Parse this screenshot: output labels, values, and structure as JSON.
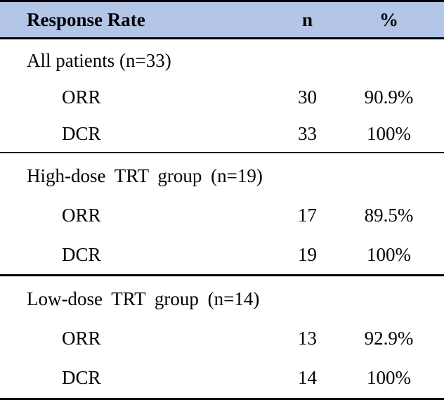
{
  "colors": {
    "header_bg": "#b4c6e7",
    "border": "#000000",
    "text": "#000000",
    "background": "#ffffff"
  },
  "table": {
    "header": {
      "label": "Response Rate",
      "n": "n",
      "pct": "%"
    },
    "sections": [
      {
        "title": "All patients (n=33)",
        "rows": [
          {
            "label": "ORR",
            "n": "30",
            "pct": "90.9%"
          },
          {
            "label": "DCR",
            "n": "33",
            "pct": "100%"
          }
        ]
      },
      {
        "title": "High-dose TRT group (n=19)",
        "rows": [
          {
            "label": "ORR",
            "n": "17",
            "pct": "89.5%"
          },
          {
            "label": "DCR",
            "n": "19",
            "pct": "100%"
          }
        ]
      },
      {
        "title": "Low-dose TRT group (n=14)",
        "rows": [
          {
            "label": "ORR",
            "n": "13",
            "pct": "92.9%"
          },
          {
            "label": "DCR",
            "n": "14",
            "pct": "100%"
          }
        ]
      }
    ]
  },
  "chart_data": {
    "type": "table",
    "title": "Response Rate",
    "columns": [
      "Response Rate",
      "n",
      "%"
    ],
    "rows": [
      [
        "All patients (n=33)",
        null,
        null
      ],
      [
        "ORR",
        30,
        "90.9%"
      ],
      [
        "DCR",
        33,
        "100%"
      ],
      [
        "High-dose TRT group (n=19)",
        null,
        null
      ],
      [
        "ORR",
        17,
        "89.5%"
      ],
      [
        "DCR",
        19,
        "100%"
      ],
      [
        "Low-dose TRT group (n=14)",
        null,
        null
      ],
      [
        "ORR",
        13,
        "92.9%"
      ],
      [
        "DCR",
        14,
        "100%"
      ]
    ]
  }
}
